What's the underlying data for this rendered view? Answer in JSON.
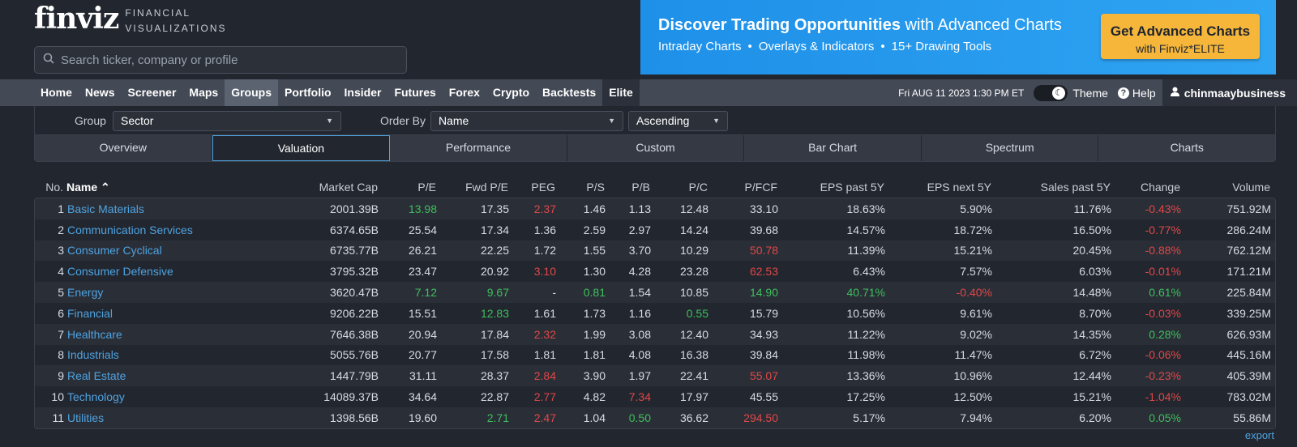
{
  "brand": {
    "name": "finviz",
    "tagline_1": "FINANCIAL",
    "tagline_2": "VISUALIZATIONS"
  },
  "search": {
    "placeholder": "Search ticker, company or profile"
  },
  "banner": {
    "title_bold": "Discover Trading Opportunities",
    "title_rest": " with Advanced Charts",
    "features": [
      "Intraday Charts",
      "•",
      "Overlays & Indicators",
      "•",
      "15+ Drawing Tools"
    ],
    "button_line1": "Get Advanced Charts",
    "button_line2": "with Finviz*ELITE"
  },
  "nav": {
    "items": [
      "Home",
      "News",
      "Screener",
      "Maps",
      "Groups",
      "Portfolio",
      "Insider",
      "Futures",
      "Forex",
      "Crypto",
      "Backtests",
      "Elite"
    ],
    "active": "Groups",
    "datetime": "Fri AUG 11 2023 1:30 PM ET",
    "theme_label": "Theme",
    "help_label": "Help",
    "username": "chinmaaybusiness"
  },
  "controls": {
    "group_label": "Group",
    "group_value": "Sector",
    "order_label": "Order By",
    "order_value": "Name",
    "direction_value": "Ascending"
  },
  "tabs": [
    "Overview",
    "Valuation",
    "Performance",
    "Custom",
    "Bar Chart",
    "Spectrum",
    "Charts"
  ],
  "active_tab": "Valuation",
  "columns": [
    "No.",
    "Name ⌃",
    "Market Cap",
    "P/E",
    "Fwd P/E",
    "PEG",
    "P/S",
    "P/B",
    "P/C",
    "P/FCF",
    "EPS past 5Y",
    "EPS next 5Y",
    "Sales past 5Y",
    "Change",
    "Volume"
  ],
  "rows": [
    {
      "no": "1",
      "name": "Basic Materials",
      "mcap": "2001.39B",
      "pe": "13.98",
      "fpe": "17.35",
      "peg": "2.37",
      "ps": "1.46",
      "pb": "1.13",
      "pc": "12.48",
      "pfcf": "33.10",
      "eps5": "18.63%",
      "epsn": "5.90%",
      "sales": "11.76%",
      "chg": "-0.43%",
      "vol": "751.92M"
    },
    {
      "no": "2",
      "name": "Communication Services",
      "mcap": "6374.65B",
      "pe": "25.54",
      "fpe": "17.34",
      "peg": "1.36",
      "ps": "2.59",
      "pb": "2.97",
      "pc": "14.24",
      "pfcf": "39.68",
      "eps5": "14.57%",
      "epsn": "18.72%",
      "sales": "16.50%",
      "chg": "-0.77%",
      "vol": "286.24M"
    },
    {
      "no": "3",
      "name": "Consumer Cyclical",
      "mcap": "6735.77B",
      "pe": "26.21",
      "fpe": "22.25",
      "peg": "1.72",
      "ps": "1.55",
      "pb": "3.70",
      "pc": "10.29",
      "pfcf": "50.78",
      "eps5": "11.39%",
      "epsn": "15.21%",
      "sales": "20.45%",
      "chg": "-0.88%",
      "vol": "762.12M"
    },
    {
      "no": "4",
      "name": "Consumer Defensive",
      "mcap": "3795.32B",
      "pe": "23.47",
      "fpe": "20.92",
      "peg": "3.10",
      "ps": "1.30",
      "pb": "4.28",
      "pc": "23.28",
      "pfcf": "62.53",
      "eps5": "6.43%",
      "epsn": "7.57%",
      "sales": "6.03%",
      "chg": "-0.01%",
      "vol": "171.21M"
    },
    {
      "no": "5",
      "name": "Energy",
      "mcap": "3620.47B",
      "pe": "7.12",
      "fpe": "9.67",
      "peg": "-",
      "ps": "0.81",
      "pb": "1.54",
      "pc": "10.85",
      "pfcf": "14.90",
      "eps5": "40.71%",
      "epsn": "-0.40%",
      "sales": "14.48%",
      "chg": "0.61%",
      "vol": "225.84M"
    },
    {
      "no": "6",
      "name": "Financial",
      "mcap": "9206.22B",
      "pe": "15.51",
      "fpe": "12.83",
      "peg": "1.61",
      "ps": "1.73",
      "pb": "1.16",
      "pc": "0.55",
      "pfcf": "15.79",
      "eps5": "10.56%",
      "epsn": "9.61%",
      "sales": "8.70%",
      "chg": "-0.03%",
      "vol": "339.25M"
    },
    {
      "no": "7",
      "name": "Healthcare",
      "mcap": "7646.38B",
      "pe": "20.94",
      "fpe": "17.84",
      "peg": "2.32",
      "ps": "1.99",
      "pb": "3.08",
      "pc": "12.40",
      "pfcf": "34.93",
      "eps5": "11.22%",
      "epsn": "9.02%",
      "sales": "14.35%",
      "chg": "0.28%",
      "vol": "626.93M"
    },
    {
      "no": "8",
      "name": "Industrials",
      "mcap": "5055.76B",
      "pe": "20.77",
      "fpe": "17.58",
      "peg": "1.81",
      "ps": "1.81",
      "pb": "4.08",
      "pc": "16.38",
      "pfcf": "39.84",
      "eps5": "11.98%",
      "epsn": "11.47%",
      "sales": "6.72%",
      "chg": "-0.06%",
      "vol": "445.16M"
    },
    {
      "no": "9",
      "name": "Real Estate",
      "mcap": "1447.79B",
      "pe": "31.11",
      "fpe": "28.37",
      "peg": "2.84",
      "ps": "3.90",
      "pb": "1.97",
      "pc": "22.41",
      "pfcf": "55.07",
      "eps5": "13.36%",
      "epsn": "10.96%",
      "sales": "12.44%",
      "chg": "-0.23%",
      "vol": "405.39M"
    },
    {
      "no": "10",
      "name": "Technology",
      "mcap": "14089.37B",
      "pe": "34.64",
      "fpe": "22.87",
      "peg": "2.77",
      "ps": "4.82",
      "pb": "7.34",
      "pc": "17.97",
      "pfcf": "45.55",
      "eps5": "17.25%",
      "epsn": "12.50%",
      "sales": "15.21%",
      "chg": "-1.04%",
      "vol": "783.02M"
    },
    {
      "no": "11",
      "name": "Utilities",
      "mcap": "1398.56B",
      "pe": "19.60",
      "fpe": "2.71",
      "peg": "2.47",
      "ps": "1.04",
      "pb": "0.50",
      "pc": "36.62",
      "pfcf": "294.50",
      "eps5": "5.17%",
      "epsn": "7.94%",
      "sales": "6.20%",
      "chg": "0.05%",
      "vol": "55.86M"
    }
  ],
  "value_colors": {
    "positive": "#3fbf5c",
    "negative": "#e04848",
    "green_cells": [
      "0.pe",
      "4.pe",
      "4.fpe",
      "4.ps",
      "4.pfcf",
      "4.eps5",
      "4.chg",
      "5.fpe",
      "5.pc",
      "6.chg",
      "10.fpe",
      "10.pb",
      "10.chg"
    ],
    "red_cells": [
      "0.peg",
      "0.chg",
      "1.chg",
      "2.pfcf",
      "2.chg",
      "3.peg",
      "3.pfcf",
      "3.chg",
      "4.epsn",
      "5.chg",
      "6.peg",
      "7.chg",
      "8.peg",
      "8.pfcf",
      "8.chg",
      "9.peg",
      "9.pb",
      "9.chg",
      "10.peg",
      "10.pfcf"
    ]
  },
  "export_label": "export"
}
